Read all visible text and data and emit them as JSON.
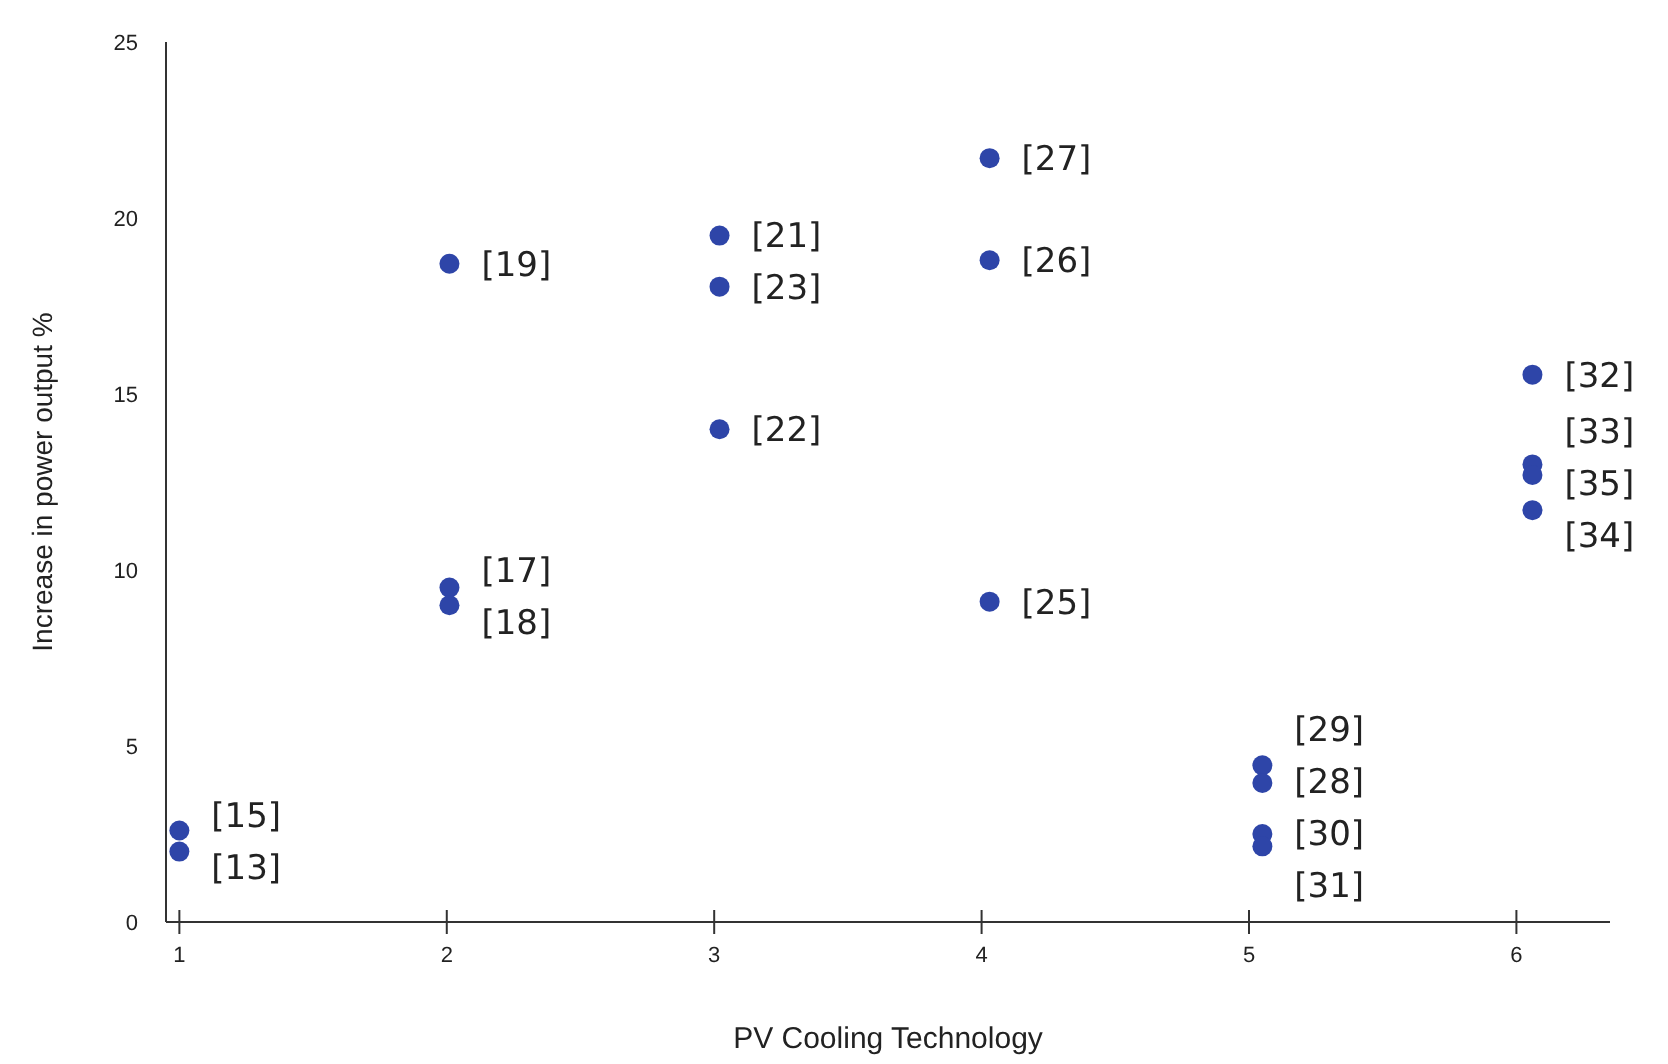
{
  "chart_data": {
    "type": "scatter",
    "xlabel": "PV Cooling Technology",
    "ylabel": "Increase in power output %",
    "xlim": [
      0.95,
      6.35
    ],
    "xticks": [
      1,
      2,
      3,
      4,
      5,
      6
    ],
    "ylim": [
      0,
      25
    ],
    "yticks": [
      0,
      5,
      10,
      15,
      20,
      25
    ],
    "grid": false,
    "marker": "circle",
    "series": [
      {
        "color": "#2e45a8",
        "x": [
          1,
          1,
          2.01,
          2.01,
          2.01,
          3.02,
          3.02,
          3.02,
          4.03,
          4.03,
          4.03,
          5.05,
          5.05,
          5.05,
          5.05,
          6.06,
          6.06,
          6.06,
          6.06
        ],
        "values": [
          2.6,
          2.0,
          18.7,
          9.5,
          9.0,
          19.5,
          18.05,
          14.0,
          21.7,
          18.8,
          9.1,
          4.45,
          3.95,
          2.5,
          2.15,
          15.55,
          13.0,
          12.7,
          11.7
        ]
      }
    ],
    "annotations": [
      {
        "text": "[15]",
        "x": 1,
        "y": 2.6
      },
      {
        "text": "[13]",
        "x": 1,
        "y": 2.0
      },
      {
        "text": "[19]",
        "x": 2.01,
        "y": 18.7
      },
      {
        "text": "[17]",
        "x": 2.01,
        "y": 9.5
      },
      {
        "text": "[18]",
        "x": 2.01,
        "y": 9.0
      },
      {
        "text": "[21]",
        "x": 3.02,
        "y": 19.5
      },
      {
        "text": "[23]",
        "x": 3.02,
        "y": 18.05
      },
      {
        "text": "[22]",
        "x": 3.02,
        "y": 14.0
      },
      {
        "text": "[27]",
        "x": 4.03,
        "y": 21.7
      },
      {
        "text": "[26]",
        "x": 4.03,
        "y": 18.8
      },
      {
        "text": "[25]",
        "x": 4.03,
        "y": 9.1
      },
      {
        "text": "[29]",
        "x": 5.05,
        "y": 4.45
      },
      {
        "text": "[28]",
        "x": 5.05,
        "y": 3.95
      },
      {
        "text": "[30]",
        "x": 5.05,
        "y": 2.5
      },
      {
        "text": "[31]",
        "x": 5.05,
        "y": 2.15
      },
      {
        "text": "[32]",
        "x": 6.06,
        "y": 15.55
      },
      {
        "text": "[33]",
        "x": 6.06,
        "y": 13.0
      },
      {
        "text": "[35]",
        "x": 6.06,
        "y": 12.7
      },
      {
        "text": "[34]",
        "x": 6.06,
        "y": 11.7
      }
    ]
  }
}
